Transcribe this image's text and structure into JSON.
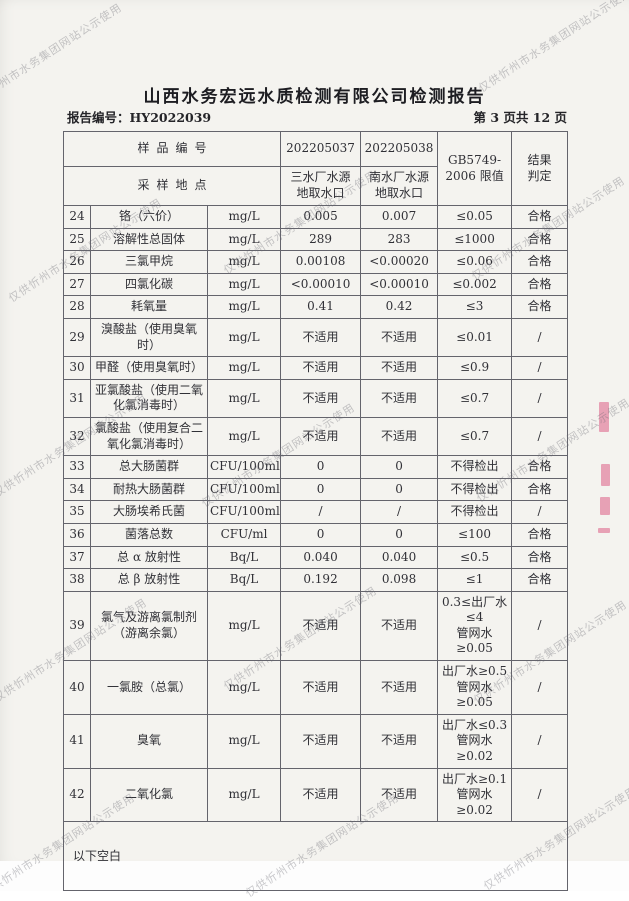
{
  "page": {
    "title": "山西水务宏远水质检测有限公司检测报告",
    "report_no": "报告编号：HY2022039",
    "page_indicator": "第 3 页共 12 页",
    "footer_note": "以下空白"
  },
  "watermark": {
    "text": "仅供忻州市水务集团网站公示使用"
  },
  "colors": {
    "paper": "#f4f3ef",
    "table_border": "#64646c",
    "watermark_gray": "#6a6a72",
    "stamp_red": "#d63e6e"
  },
  "table": {
    "header": {
      "sample_no_label": "样品编号",
      "site_label": "采样地点",
      "sample1_no": "202205037",
      "sample2_no": "202205038",
      "sample1_site": "三水厂水源\n地取水口",
      "sample2_site": "南水厂水源\n地取水口",
      "limit_header": "GB5749-\n2006 限值",
      "result_header": "结果\n判定"
    },
    "rows": [
      {
        "no": "24",
        "name": "铬（六价）",
        "unit": "mg/L",
        "v1": "0.005",
        "v2": "0.007",
        "limit": "≤0.05",
        "result": "合格"
      },
      {
        "no": "25",
        "name": "溶解性总固体",
        "unit": "mg/L",
        "v1": "289",
        "v2": "283",
        "limit": "≤1000",
        "result": "合格"
      },
      {
        "no": "26",
        "name": "三氯甲烷",
        "unit": "mg/L",
        "v1": "0.00108",
        "v2": "<0.00020",
        "limit": "≤0.06",
        "result": "合格"
      },
      {
        "no": "27",
        "name": "四氯化碳",
        "unit": "mg/L",
        "v1": "<0.00010",
        "v2": "<0.00010",
        "limit": "≤0.002",
        "result": "合格"
      },
      {
        "no": "28",
        "name": "耗氧量",
        "unit": "mg/L",
        "v1": "0.41",
        "v2": "0.42",
        "limit": "≤3",
        "result": "合格"
      },
      {
        "no": "29",
        "name": "溴酸盐（使用臭氧时）",
        "unit": "mg/L",
        "v1": "不适用",
        "v2": "不适用",
        "limit": "≤0.01",
        "result": "/"
      },
      {
        "no": "30",
        "name": "甲醛（使用臭氧时）",
        "unit": "mg/L",
        "v1": "不适用",
        "v2": "不适用",
        "limit": "≤0.9",
        "result": "/"
      },
      {
        "no": "31",
        "name": "亚氯酸盐（使用二氧化氯消毒时）",
        "unit": "mg/L",
        "v1": "不适用",
        "v2": "不适用",
        "limit": "≤0.7",
        "result": "/"
      },
      {
        "no": "32",
        "name": "氯酸盐（使用复合二氧化氯消毒时）",
        "unit": "mg/L",
        "v1": "不适用",
        "v2": "不适用",
        "limit": "≤0.7",
        "result": "/"
      },
      {
        "no": "33",
        "name": "总大肠菌群",
        "unit": "CFU/100ml",
        "v1": "0",
        "v2": "0",
        "limit": "不得检出",
        "result": "合格"
      },
      {
        "no": "34",
        "name": "耐热大肠菌群",
        "unit": "CFU/100ml",
        "v1": "0",
        "v2": "0",
        "limit": "不得检出",
        "result": "合格"
      },
      {
        "no": "35",
        "name": "大肠埃希氏菌",
        "unit": "CFU/100ml",
        "v1": "/",
        "v2": "/",
        "limit": "不得检出",
        "result": "/"
      },
      {
        "no": "36",
        "name": "菌落总数",
        "unit": "CFU/ml",
        "v1": "0",
        "v2": "0",
        "limit": "≤100",
        "result": "合格"
      },
      {
        "no": "37",
        "name": "总 α 放射性",
        "unit": "Bq/L",
        "v1": "0.040",
        "v2": "0.040",
        "limit": "≤0.5",
        "result": "合格"
      },
      {
        "no": "38",
        "name": "总 β 放射性",
        "unit": "Bq/L",
        "v1": "0.192",
        "v2": "0.098",
        "limit": "≤1",
        "result": "合格"
      },
      {
        "no": "39",
        "name": "氯气及游离氯制剂（游离余氯）",
        "unit": "mg/L",
        "v1": "不适用",
        "v2": "不适用",
        "limit": "0.3≤出厂水≤4\n管网水≥0.05",
        "result": "/"
      },
      {
        "no": "40",
        "name": "一氯胺（总氯）",
        "unit": "mg/L",
        "v1": "不适用",
        "v2": "不适用",
        "limit": "出厂水≥0.5\n管网水≥0.05",
        "result": "/"
      },
      {
        "no": "41",
        "name": "臭氧",
        "unit": "mg/L",
        "v1": "不适用",
        "v2": "不适用",
        "limit": "出厂水≤0.3\n管网水≥0.02",
        "result": "/"
      },
      {
        "no": "42",
        "name": "二氧化氯",
        "unit": "mg/L",
        "v1": "不适用",
        "v2": "不适用",
        "limit": "出厂水≥0.1\n管网水≥0.02",
        "result": "/"
      }
    ]
  }
}
